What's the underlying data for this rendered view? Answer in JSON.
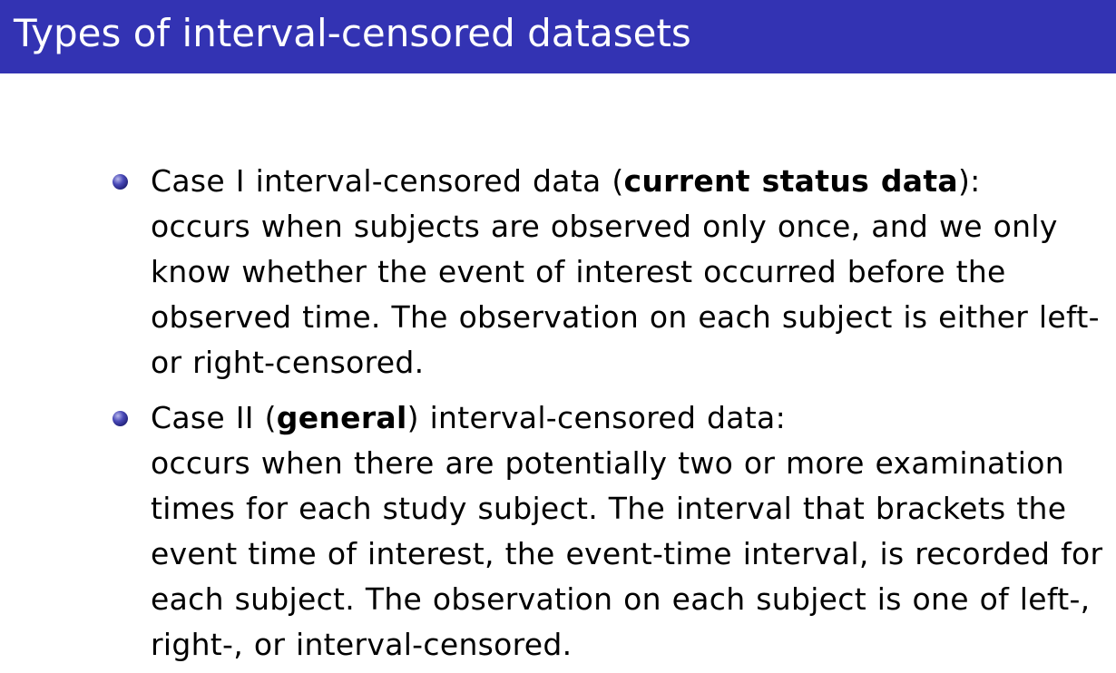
{
  "slide": {
    "title": "Types of interval-censored datasets"
  },
  "bullets": [
    {
      "lead_before": "Case I interval-censored data (",
      "lead_bold": "current status data",
      "lead_after": "):",
      "lines": [
        "occurs when subjects are observed only once, and we only",
        "know whether the event of interest occurred before the",
        "observed time. The observation on each subject is either left-",
        "or right-censored."
      ]
    },
    {
      "lead_before": "Case II (",
      "lead_bold": "general",
      "lead_after": ") interval-censored data:",
      "lines": [
        "occurs when there are potentially two or more examination",
        "times for each study subject. The interval that brackets the",
        "event time of interest, the event-time interval, is recorded for",
        "each subject. The observation on each subject is one of left-,",
        "right-, or interval-censored."
      ]
    }
  ]
}
